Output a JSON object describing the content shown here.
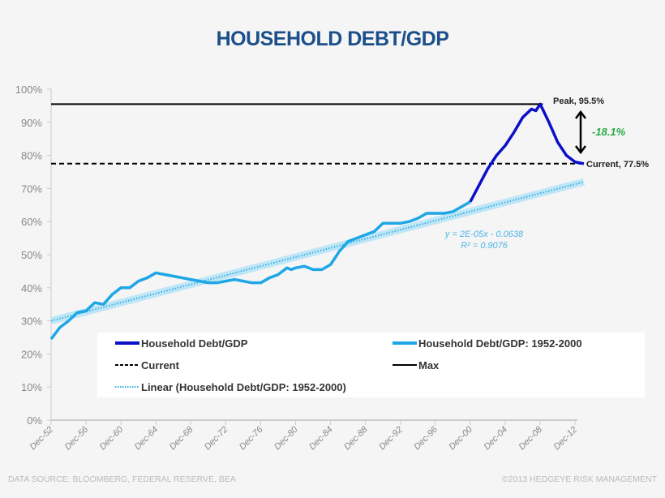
{
  "chart_data": {
    "type": "line",
    "title": "HOUSEHOLD DEBT/GDP",
    "ylim": [
      0,
      100
    ],
    "yticks": [
      "0%",
      "10%",
      "20%",
      "30%",
      "40%",
      "50%",
      "60%",
      "70%",
      "80%",
      "90%",
      "100%"
    ],
    "xticks": [
      "Dec-52",
      "Dec-56",
      "Dec-60",
      "Dec-64",
      "Dec-68",
      "Dec-72",
      "Dec-76",
      "Dec-80",
      "Dec-84",
      "Dec-88",
      "Dec-92",
      "Dec-96",
      "Dec-00",
      "Dec-04",
      "Dec-08",
      "Dec-12"
    ],
    "xlim": [
      1952,
      2013.2
    ],
    "series": [
      {
        "name": "Household Debt/GDP",
        "color": "#0a10c8",
        "x": [
          2000,
          2001,
          2002,
          2003,
          2004,
          2005,
          2006,
          2007,
          2007.5,
          2008,
          2009,
          2010,
          2011,
          2012,
          2013
        ],
        "values": [
          66,
          71,
          76,
          80,
          83,
          87,
          91.5,
          94,
          93.5,
          95.5,
          90,
          84,
          80,
          78,
          77.5
        ]
      },
      {
        "name": "Household Debt/GDP: 1952-2000",
        "color": "#1ea6e6",
        "x": [
          1952,
          1953,
          1954,
          1955,
          1956,
          1957,
          1958,
          1959,
          1960,
          1961,
          1962,
          1963,
          1964,
          1965,
          1966,
          1967,
          1968,
          1969,
          1970,
          1971,
          1972,
          1973,
          1974,
          1975,
          1976,
          1977,
          1978,
          1979,
          1979.5,
          1980,
          1981,
          1982,
          1983,
          1984,
          1985,
          1986,
          1987,
          1988,
          1989,
          1990,
          1991,
          1992,
          1993,
          1994,
          1995,
          1996,
          1997,
          1998,
          1999,
          2000
        ],
        "values": [
          24.5,
          28,
          30,
          32.5,
          33,
          35.5,
          35,
          38,
          40,
          40,
          42,
          43,
          44.5,
          44,
          43.5,
          43,
          42.5,
          42,
          41.5,
          41.5,
          42,
          42.5,
          42,
          41.5,
          41.5,
          43,
          44,
          46,
          45.5,
          46,
          46.5,
          45.5,
          45.5,
          47,
          51,
          54,
          55,
          56,
          57,
          59.5,
          59.5,
          59.5,
          60,
          61,
          62.5,
          62.5,
          62.5,
          63,
          64.5,
          66
        ]
      }
    ],
    "trendline": {
      "label": "Linear (Household Debt/GDP: 1952-2000)",
      "x": [
        1952,
        2013
      ],
      "values": [
        30,
        72
      ],
      "equation": "y = 2E-05x - 0.0638",
      "r2": "R² = 0.9076"
    },
    "reference_lines": [
      {
        "name": "Max",
        "value": 95.5,
        "style": "solid",
        "annotation": "Peak, 95.5%"
      },
      {
        "name": "Current",
        "value": 77.5,
        "style": "dashed",
        "annotation": "Current, 77.5%"
      }
    ],
    "change_annotation": "-18.1%",
    "change_color": "#2aaa4a",
    "legend": {
      "placement": "bottom",
      "entries": [
        "Household Debt/GDP",
        "Household Debt/GDP: 1952-2000",
        "Current",
        "Max",
        "Linear (Household Debt/GDP: 1952-2000)"
      ]
    }
  },
  "footer": {
    "source": "DATA SOURCE: BLOOMBERG, FEDERAL RESERVE, BEA",
    "copyright": "©2013 HEDGEYE RISK MANAGEMENT"
  }
}
